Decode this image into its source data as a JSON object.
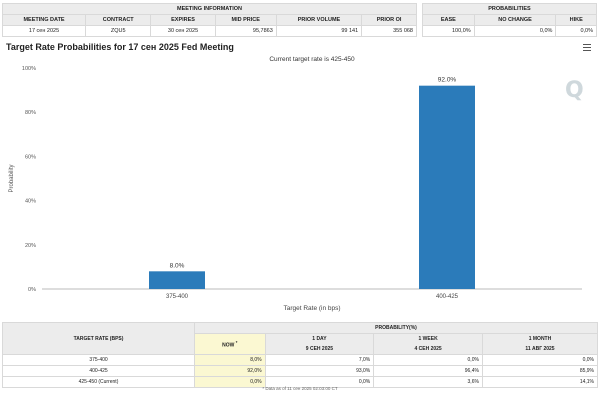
{
  "meeting_info": {
    "title": "MEETING INFORMATION",
    "headers": [
      "MEETING DATE",
      "CONTRACT",
      "EXPIRES",
      "MID PRICE",
      "PRIOR VOLUME",
      "PRIOR OI"
    ],
    "row": [
      "17 сен 2025",
      "ZQU5",
      "30 сен 2025",
      "95,7863",
      "99 141",
      "355 068"
    ]
  },
  "probabilities": {
    "title": "PROBABILITIES",
    "headers": [
      "EASE",
      "NO CHANGE",
      "HIKE"
    ],
    "row": [
      "100,0%",
      "0,0%",
      "0,0%"
    ]
  },
  "chart_title": "Target Rate Probabilities for 17 сен 2025 Fed Meeting",
  "chart_data": {
    "type": "bar",
    "title": "Target Rate Probabilities for 17 сен 2025 Fed Meeting",
    "subtitle": "Current target rate is 425-450",
    "xlabel": "Target Rate (in bps)",
    "ylabel": "Probability",
    "categories": [
      "375-400",
      "400-425"
    ],
    "values": [
      8.0,
      92.0
    ],
    "data_labels": [
      "8.0%",
      "92.0%"
    ],
    "ylim": [
      0,
      100
    ],
    "yticks": [
      0,
      20,
      40,
      60,
      80,
      100
    ],
    "ytick_labels": [
      "0%",
      "20%",
      "40%",
      "60%",
      "80%",
      "100%"
    ],
    "grid": false,
    "color": "#2b7bba"
  },
  "bottom_table": {
    "col_target": "TARGET RATE (BPS)",
    "col_prob": "PROBABILITY(%)",
    "subheaders": [
      {
        "line1": "NOW",
        "line2": "*"
      },
      {
        "line1": "1 DAY",
        "line2": "9 СЕН 2025"
      },
      {
        "line1": "1 WEEK",
        "line2": "4 СЕН 2025"
      },
      {
        "line1": "1 MONTH",
        "line2": "11 АВГ 2025"
      }
    ],
    "rows": [
      {
        "rate": "375-400",
        "now": "8,0%",
        "day": "7,0%",
        "week": "0,0%",
        "month": "0,0%"
      },
      {
        "rate": "400-425",
        "now": "92,0%",
        "day": "93,0%",
        "week": "96,4%",
        "month": "85,9%"
      },
      {
        "rate": "425-450 (Current)",
        "now": "0,0%",
        "day": "0,0%",
        "week": "3,6%",
        "month": "14,1%"
      }
    ]
  },
  "footnote": "* Data as of 11 сен 2025 02:03:00 CT",
  "logo_text": "Q"
}
